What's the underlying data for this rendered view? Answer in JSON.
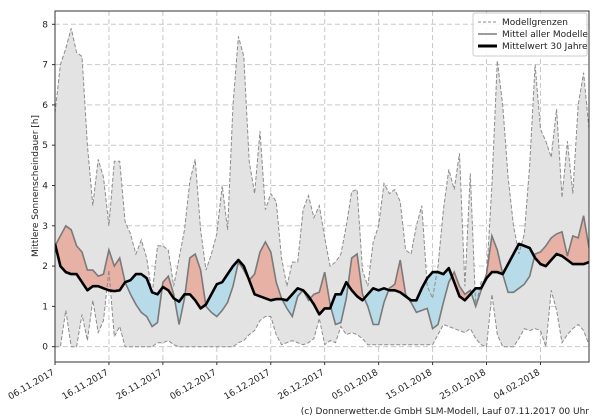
{
  "chart_data": {
    "type": "line",
    "title": "",
    "xlabel": "",
    "ylabel": "Mittlere Sonnenscheindauer [h]",
    "ylim": [
      -0.38,
      8.33
    ],
    "yticks": [
      "0",
      "1",
      "2",
      "3",
      "4",
      "5",
      "6",
      "7",
      "8"
    ],
    "xtick_labels": [
      "06.11.2017",
      "16.11.2017",
      "26.11.2017",
      "06.12.2017",
      "16.12.2017",
      "26.12.2017",
      "05.01.2018",
      "15.01.2018",
      "25.01.2018",
      "04.02.2018"
    ],
    "x_start": "06.11.2017",
    "x_unit": "days",
    "grid": true,
    "legend_position": "top-right",
    "legend": [
      "Modellgrenzen",
      "Mittel aller Modelle",
      "Mittelwert 30 Jahre"
    ],
    "colors": {
      "band": "#e3e3e3",
      "band_edge": "#8c8c8c",
      "model": "#7a7a7a",
      "climate": "#000000",
      "above": "#e8b1a6",
      "below": "#b8dbea"
    },
    "series": [
      {
        "name": "Modellgrenzen (oben)",
        "values": [
          5.8,
          7.0,
          7.4,
          7.9,
          7.3,
          7.2,
          5.0,
          3.5,
          4.65,
          4.2,
          3.0,
          4.6,
          4.6,
          3.1,
          2.8,
          2.3,
          2.65,
          2.2,
          1.3,
          2.5,
          2.5,
          2.4,
          1.5,
          2.2,
          2.9,
          4.1,
          4.65,
          2.9,
          1.9,
          2.3,
          2.8,
          4.0,
          2.9,
          6.0,
          7.7,
          7.2,
          4.6,
          3.8,
          5.35,
          3.4,
          3.8,
          3.6,
          2.2,
          1.5,
          2.1,
          2.1,
          3.4,
          3.75,
          3.2,
          3.5,
          2.7,
          2.0,
          2.1,
          2.3,
          3.0,
          3.85,
          3.9,
          1.9,
          1.5,
          2.6,
          3.0,
          4.05,
          3.8,
          3.9,
          3.6,
          2.4,
          2.3,
          3.0,
          3.5,
          1.5,
          1.2,
          2.0,
          3.4,
          4.4,
          3.9,
          4.8,
          1.5,
          4.3,
          1.0,
          1.6,
          1.7,
          4.0,
          7.1,
          6.0,
          4.2,
          3.0,
          2.3,
          2.8,
          4.5,
          7.0,
          5.4,
          5.1,
          4.7,
          5.9,
          3.7,
          5.1,
          3.8,
          6.0,
          6.8,
          5.4
        ]
      },
      {
        "name": "Modellgrenzen (unten)",
        "values": [
          0,
          0,
          0.9,
          0,
          0,
          0.8,
          0.15,
          1.15,
          0.35,
          0.65,
          1.9,
          0.25,
          0.5,
          0,
          0,
          0,
          0,
          0,
          0,
          0.1,
          0.1,
          0.15,
          0.05,
          0,
          0,
          0,
          0,
          0,
          0,
          0,
          0,
          0,
          0,
          0,
          0.1,
          0.15,
          0.3,
          0.4,
          0.65,
          0.75,
          0.75,
          0.3,
          0.05,
          0.1,
          0.15,
          0.1,
          0.05,
          0.1,
          0.2,
          0.7,
          0.05,
          0.15,
          0.1,
          0.5,
          0.3,
          0.35,
          0.3,
          0.2,
          0.05,
          0.05,
          0.05,
          0.05,
          0.05,
          0.05,
          0.05,
          0.05,
          0.05,
          0.05,
          0.05,
          0.05,
          0.05,
          0.3,
          0.55,
          0.5,
          0.45,
          0.4,
          0.35,
          0.45,
          0.2,
          0.05,
          0,
          1.3,
          0.3,
          0,
          0,
          0,
          0.2,
          0.45,
          0.4,
          0.45,
          0.4,
          0,
          1.4,
          0.9,
          0.1,
          0.3,
          0.45,
          0.55,
          0.4,
          0.05
        ]
      },
      {
        "name": "Mittel aller Modelle",
        "values": [
          2.5,
          2.75,
          3.0,
          2.9,
          2.5,
          2.35,
          1.9,
          1.9,
          1.75,
          1.8,
          2.4,
          2.0,
          2.2,
          1.6,
          1.3,
          1.05,
          0.85,
          0.75,
          0.5,
          0.6,
          1.6,
          1.75,
          1.3,
          0.55,
          1.2,
          2.2,
          2.3,
          1.9,
          1.0,
          0.85,
          0.75,
          0.9,
          1.1,
          1.5,
          2.1,
          1.9,
          1.65,
          1.8,
          2.35,
          2.6,
          2.35,
          1.6,
          1.2,
          0.95,
          0.75,
          1.25,
          1.4,
          1.15,
          1.3,
          1.35,
          1.85,
          1.05,
          0.55,
          0.6,
          1.2,
          2.2,
          2.3,
          1.3,
          1.0,
          0.55,
          0.55,
          1.1,
          1.45,
          1.55,
          2.15,
          1.3,
          1.1,
          0.85,
          0.9,
          0.95,
          0.45,
          0.55,
          1.1,
          1.6,
          1.85,
          1.5,
          1.3,
          1.4,
          1.0,
          1.4,
          1.8,
          2.75,
          2.4,
          1.8,
          1.35,
          1.35,
          1.45,
          1.55,
          1.75,
          2.3,
          2.35,
          2.5,
          2.7,
          2.8,
          2.85,
          2.25,
          2.75,
          2.7,
          3.25,
          2.45
        ]
      },
      {
        "name": "Mittelwert 30 Jahre",
        "values": [
          2.55,
          2.0,
          1.85,
          1.8,
          1.8,
          1.6,
          1.4,
          1.5,
          1.5,
          1.45,
          1.4,
          1.38,
          1.4,
          1.6,
          1.65,
          1.8,
          1.8,
          1.7,
          1.35,
          1.3,
          1.48,
          1.4,
          1.2,
          1.12,
          1.3,
          1.3,
          1.15,
          0.95,
          1.05,
          1.3,
          1.55,
          1.6,
          1.8,
          2.0,
          2.15,
          2.0,
          1.65,
          1.3,
          1.25,
          1.2,
          1.15,
          1.18,
          1.18,
          1.15,
          1.3,
          1.45,
          1.4,
          1.25,
          1.05,
          0.8,
          0.95,
          0.95,
          1.3,
          1.3,
          1.6,
          1.4,
          1.25,
          1.15,
          1.3,
          1.45,
          1.4,
          1.45,
          1.4,
          1.4,
          1.35,
          1.25,
          1.15,
          1.15,
          1.45,
          1.7,
          1.85,
          1.85,
          1.8,
          1.95,
          1.6,
          1.25,
          1.15,
          1.3,
          1.45,
          1.45,
          1.7,
          1.85,
          1.85,
          1.8,
          2.05,
          2.3,
          2.55,
          2.5,
          2.45,
          2.2,
          2.05,
          2.0,
          2.15,
          2.3,
          2.25,
          2.15,
          2.05,
          2.05,
          2.05,
          2.1
        ]
      }
    ]
  },
  "footer": "(c) Donnerwetter.de GmbH SLM-Modell, Lauf 07.11.2017 00 Uhr"
}
